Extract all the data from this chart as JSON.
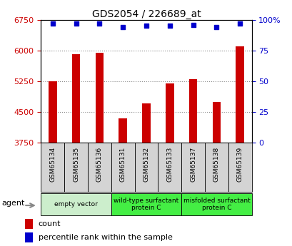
{
  "title": "GDS2054 / 226689_at",
  "samples": [
    "GSM65134",
    "GSM65135",
    "GSM65136",
    "GSM65131",
    "GSM65132",
    "GSM65133",
    "GSM65137",
    "GSM65138",
    "GSM65139"
  ],
  "counts": [
    5250,
    5900,
    5950,
    4350,
    4700,
    5200,
    5300,
    4750,
    6100
  ],
  "percentiles": [
    97,
    97,
    97,
    94,
    95,
    95,
    96,
    94,
    97
  ],
  "ylim_left": [
    3750,
    6750
  ],
  "ylim_right": [
    0,
    100
  ],
  "yticks_left": [
    3750,
    4500,
    5250,
    6000,
    6750
  ],
  "yticks_right": [
    0,
    25,
    50,
    75,
    100
  ],
  "ytick_labels_right": [
    "0",
    "25",
    "50",
    "75",
    "100%"
  ],
  "bar_color": "#cc0000",
  "dot_color": "#0000cc",
  "groups": [
    {
      "label": "empty vector",
      "start": 0,
      "end": 3,
      "color": "#cceecc"
    },
    {
      "label": "wild-type surfactant\nprotein C",
      "start": 3,
      "end": 6,
      "color": "#44ee44"
    },
    {
      "label": "misfolded surfactant\nprotein C",
      "start": 6,
      "end": 9,
      "color": "#44ee44"
    }
  ],
  "agent_label": "agent",
  "legend_count_label": "count",
  "legend_percentile_label": "percentile rank within the sample",
  "bar_width": 0.35,
  "grid_color": "#888888",
  "tick_label_color_left": "#cc0000",
  "tick_label_color_right": "#0000cc",
  "sample_box_color": "#d4d4d4",
  "fig_width": 4.1,
  "fig_height": 3.45,
  "dpi": 100
}
